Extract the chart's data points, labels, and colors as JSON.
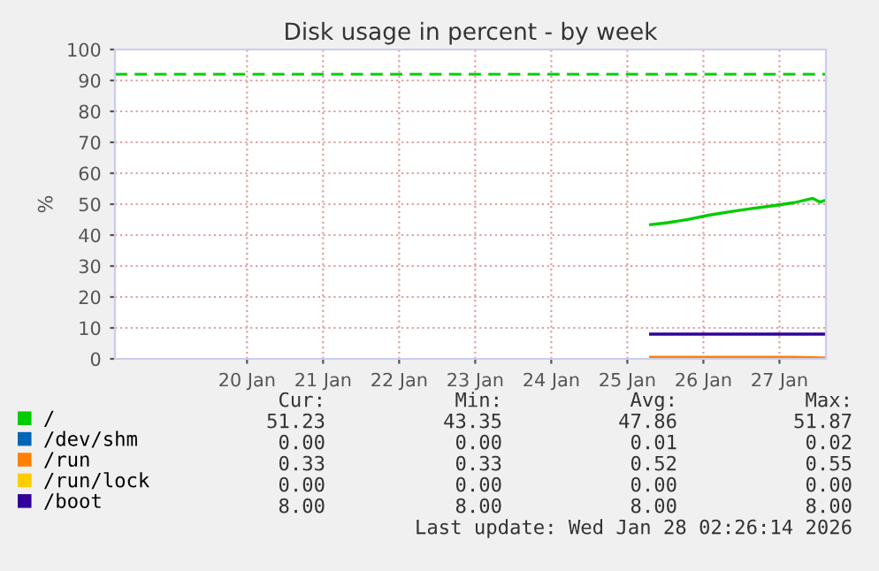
{
  "chart_data": {
    "type": "line",
    "title": "Disk usage in percent - by week",
    "ylabel": "%",
    "xlim": [
      "2026-01-18T18:20",
      "2026-01-28T02:40"
    ],
    "xticks": [
      {
        "value": "2026-01-20T12:00",
        "label": "20 Jan"
      },
      {
        "value": "2026-01-21T12:00",
        "label": "21 Jan"
      },
      {
        "value": "2026-01-22T12:00",
        "label": "22 Jan"
      },
      {
        "value": "2026-01-23T12:00",
        "label": "23 Jan"
      },
      {
        "value": "2026-01-24T12:00",
        "label": "24 Jan"
      },
      {
        "value": "2026-01-25T12:00",
        "label": "25 Jan"
      },
      {
        "value": "2026-01-26T12:00",
        "label": "26 Jan"
      },
      {
        "value": "2026-01-27T12:00",
        "label": "27 Jan"
      }
    ],
    "ylim": [
      0,
      100
    ],
    "yticks": [
      0,
      10,
      20,
      30,
      40,
      50,
      60,
      70,
      80,
      90,
      100
    ],
    "grid": true,
    "legend": "bottom",
    "marker": "none",
    "line_style": "solid",
    "x": [
      "2026-01-25T19:20",
      "2026-01-26T00:40",
      "2026-01-26T07:20",
      "2026-01-26T14:00",
      "2026-01-26T20:40",
      "2026-01-27T03:20",
      "2026-01-27T10:00",
      "2026-01-27T16:40",
      "2026-01-27T22:30",
      "2026-01-28T00:40",
      "2026-01-28T02:20"
    ],
    "series": [
      {
        "name": "/",
        "color": "#00cc00",
        "values": [
          43.4,
          44.0,
          45.1,
          46.5,
          47.6,
          48.6,
          49.5,
          50.5,
          51.9,
          50.7,
          51.2
        ]
      },
      {
        "name": "/dev/shm",
        "color": "#0066b3",
        "values": [
          null,
          null,
          null,
          null,
          null,
          null,
          null,
          null,
          null,
          null,
          null
        ]
      },
      {
        "name": "/run",
        "color": "#ff8000",
        "values": [
          0.5,
          0.5,
          0.5,
          0.5,
          0.5,
          0.5,
          0.5,
          0.5,
          0.4,
          0.3,
          0.3
        ]
      },
      {
        "name": "/run/lock",
        "color": "#ffcc00",
        "values": [
          null,
          null,
          null,
          null,
          null,
          null,
          null,
          null,
          null,
          null,
          null
        ]
      },
      {
        "name": "/boot",
        "color": "#330099",
        "values": [
          8,
          8,
          8,
          8,
          8,
          8,
          8,
          8,
          8,
          8,
          8
        ]
      }
    ],
    "ref_lines": [
      {
        "axis": "y",
        "value": 92,
        "color": "#00cc00",
        "line_style": "dashed"
      }
    ],
    "annotations": [
      "Cur:",
      "Min:",
      "Avg:",
      "Max:",
      "51.23",
      "43.35",
      "47.86",
      "51.87",
      "0.00",
      "0.00",
      "0.01",
      "0.02",
      "0.33",
      "0.33",
      "0.52",
      "0.55",
      "0.00",
      "0.00",
      "0.00",
      "0.00",
      "8.00",
      "8.00",
      "8.00",
      "8.00",
      "Last update: Wed Jan 28 02:26:14 2026"
    ]
  }
}
